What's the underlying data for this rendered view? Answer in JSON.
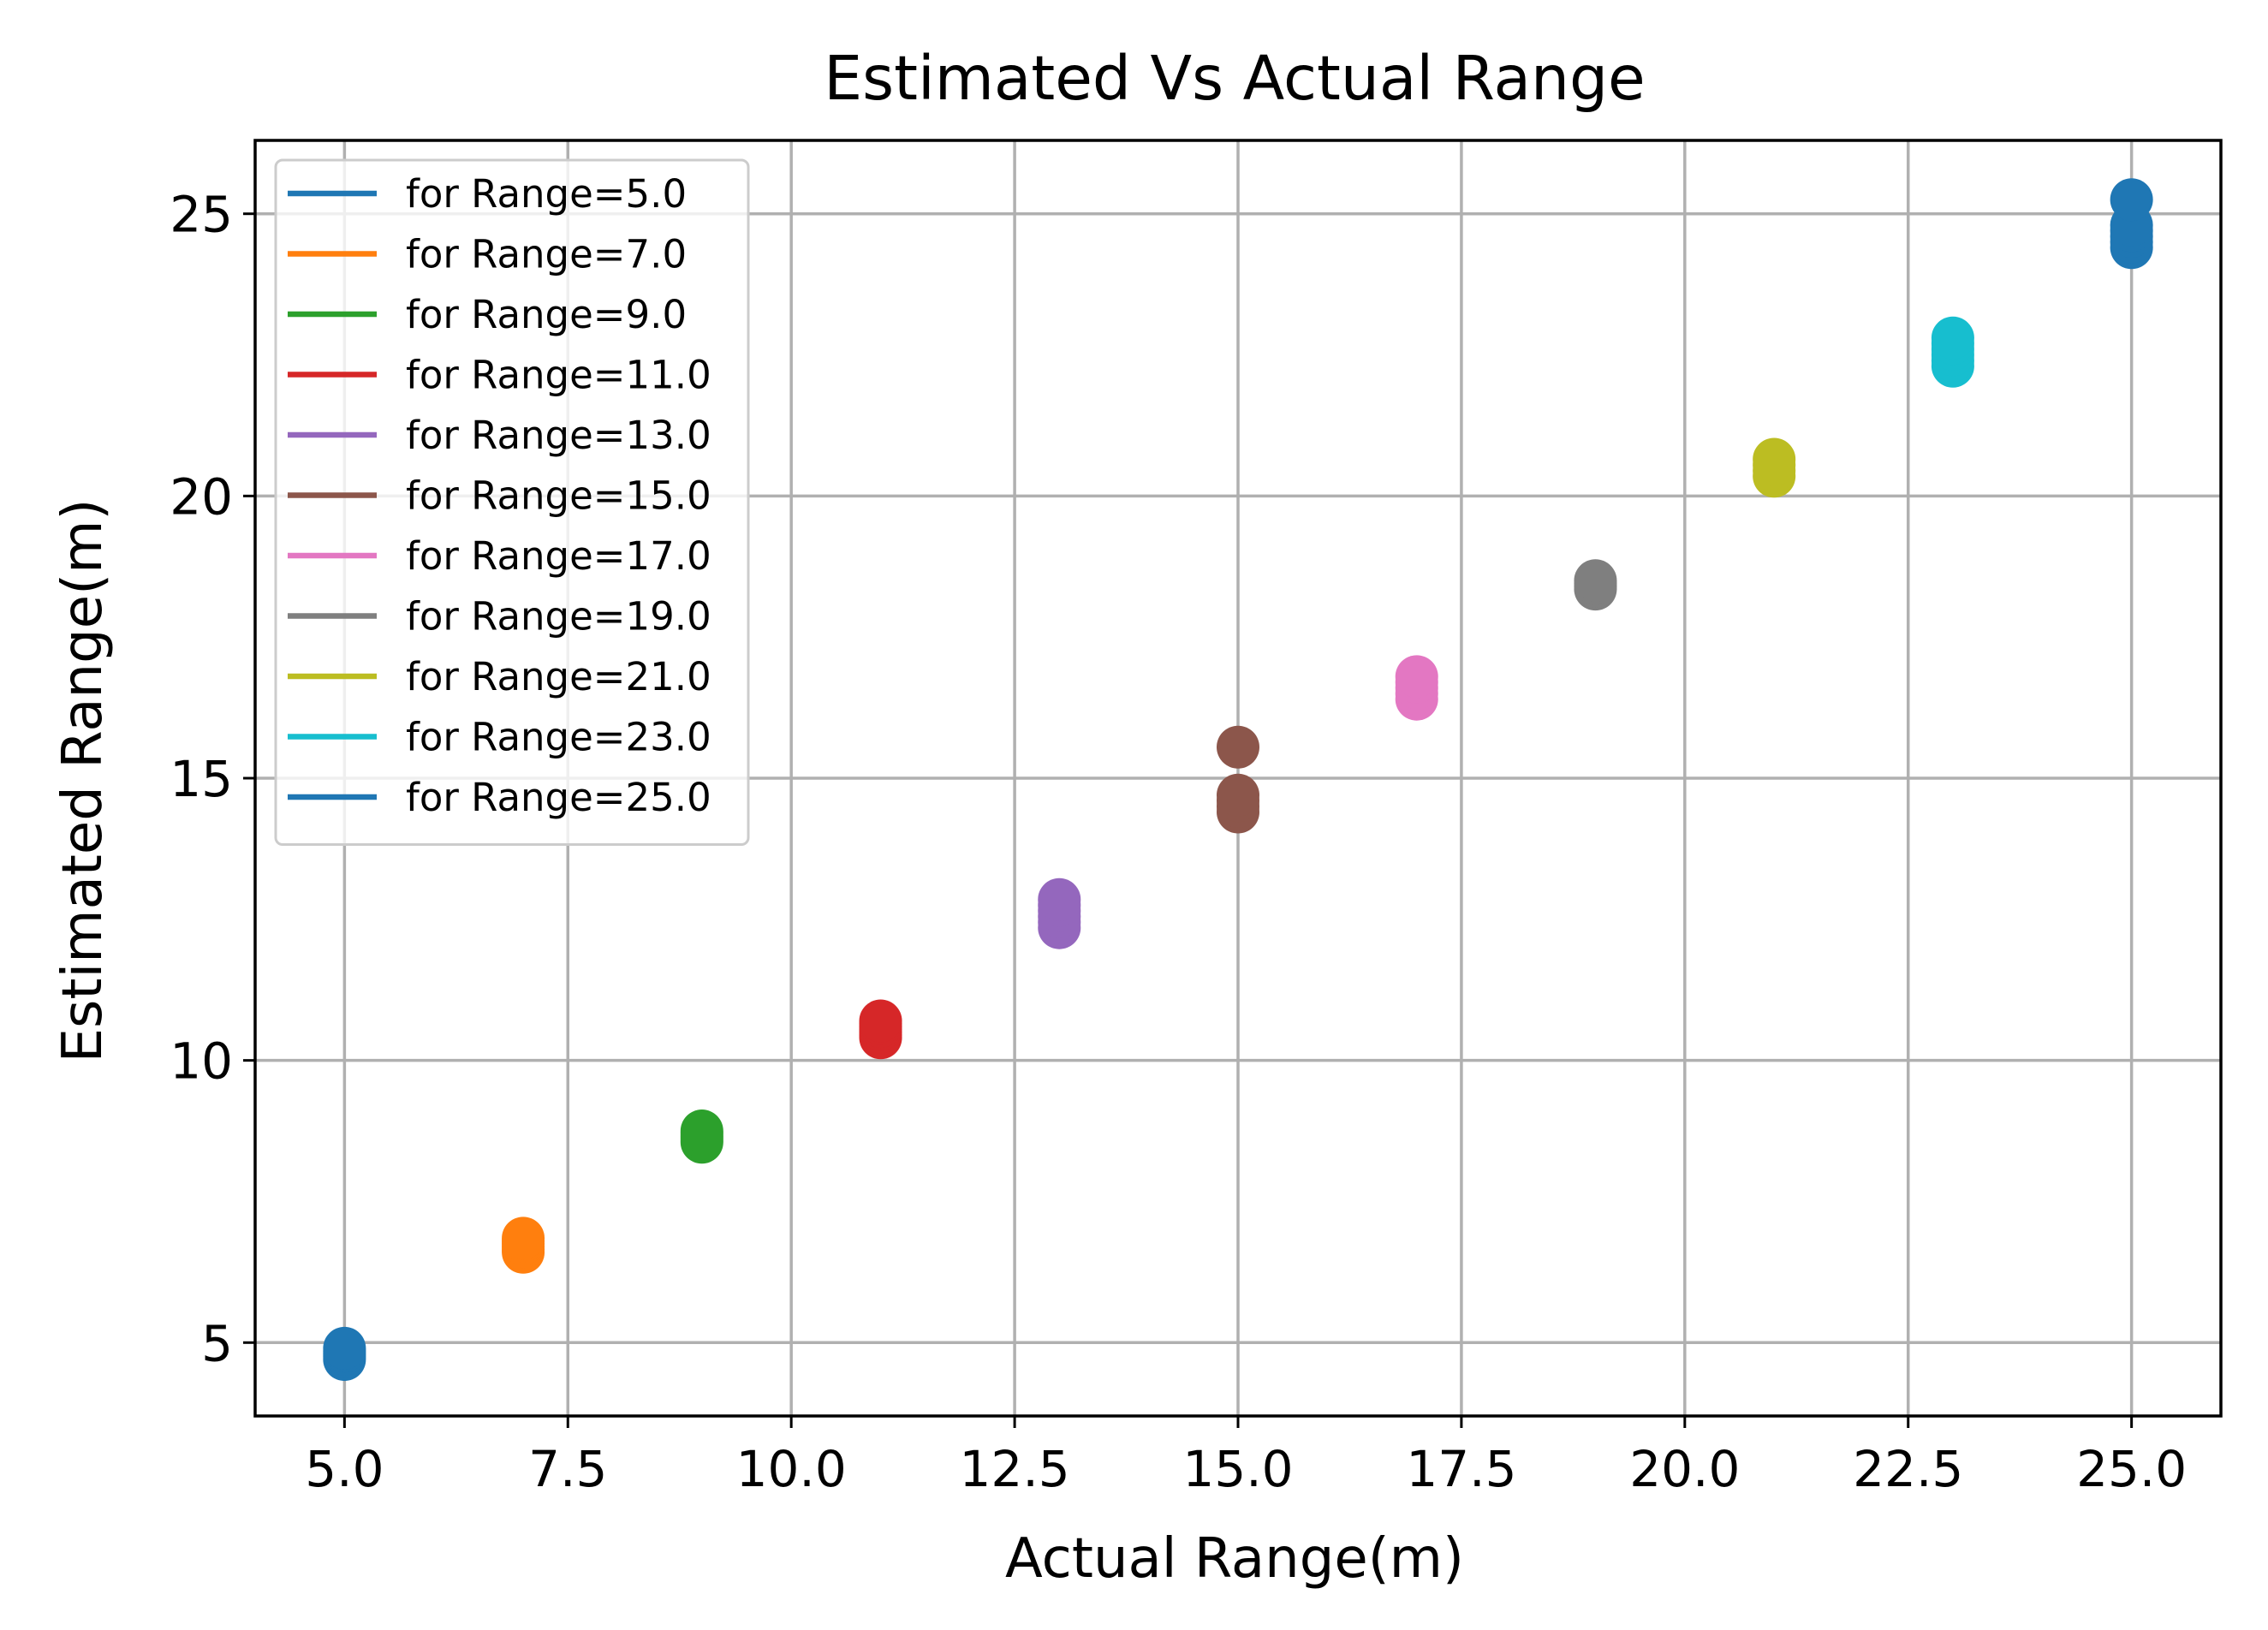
{
  "chart_data": {
    "type": "scatter",
    "title": "Estimated Vs Actual Range",
    "xlabel": "Actual Range(m)",
    "ylabel": "Estimated Range(m)",
    "xlim": [
      4.0,
      26.0
    ],
    "ylim": [
      3.7,
      26.3
    ],
    "xticks": [
      5.0,
      7.5,
      10.0,
      12.5,
      15.0,
      17.5,
      20.0,
      22.5,
      25.0
    ],
    "xtick_labels": [
      "5.0",
      "7.5",
      "10.0",
      "12.5",
      "15.0",
      "17.5",
      "20.0",
      "22.5",
      "25.0"
    ],
    "yticks": [
      5,
      10,
      15,
      20,
      25
    ],
    "ytick_labels": [
      "5",
      "10",
      "15",
      "20",
      "25"
    ],
    "grid": true,
    "legend_position": "upper-left",
    "series": [
      {
        "name": "for Range=5.0",
        "color": "#1f77b4",
        "x": 5.0,
        "y": [
          4.7,
          4.75,
          4.8,
          4.85,
          4.9
        ]
      },
      {
        "name": "for Range=7.0",
        "color": "#ff7f0e",
        "x": 7.0,
        "y": [
          6.6,
          6.65,
          6.7,
          6.75,
          6.8,
          6.85
        ]
      },
      {
        "name": "for Range=9.0",
        "color": "#2ca02c",
        "x": 9.0,
        "y": [
          8.55,
          8.6,
          8.65,
          8.7,
          8.75
        ]
      },
      {
        "name": "for Range=11.0",
        "color": "#d62728",
        "x": 11.0,
        "y": [
          10.4,
          10.45,
          10.5,
          10.55,
          10.6,
          10.65,
          10.7
        ]
      },
      {
        "name": "for Range=13.0",
        "color": "#9467bd",
        "x": 13.0,
        "y": [
          12.35,
          12.45,
          12.55,
          12.65,
          12.75,
          12.85
        ]
      },
      {
        "name": "for Range=15.0",
        "color": "#8c564b",
        "x": 15.0,
        "y": [
          14.4,
          14.5,
          14.6,
          14.7,
          15.55
        ]
      },
      {
        "name": "for Range=17.0",
        "color": "#e377c2",
        "x": 17.0,
        "y": [
          16.4,
          16.5,
          16.6,
          16.7,
          16.8
        ]
      },
      {
        "name": "for Range=19.0",
        "color": "#7f7f7f",
        "x": 19.0,
        "y": [
          18.35,
          18.4,
          18.45,
          18.5
        ]
      },
      {
        "name": "for Range=21.0",
        "color": "#bcbd22",
        "x": 21.0,
        "y": [
          20.35,
          20.45,
          20.55,
          20.65
        ]
      },
      {
        "name": "for Range=23.0",
        "color": "#17becf",
        "x": 23.0,
        "y": [
          22.3,
          22.4,
          22.5,
          22.6,
          22.7,
          22.8
        ]
      },
      {
        "name": "for Range=25.0",
        "color": "#1f77b4",
        "x": 25.0,
        "y": [
          24.4,
          24.5,
          24.6,
          24.7,
          24.8,
          25.25
        ]
      }
    ]
  }
}
